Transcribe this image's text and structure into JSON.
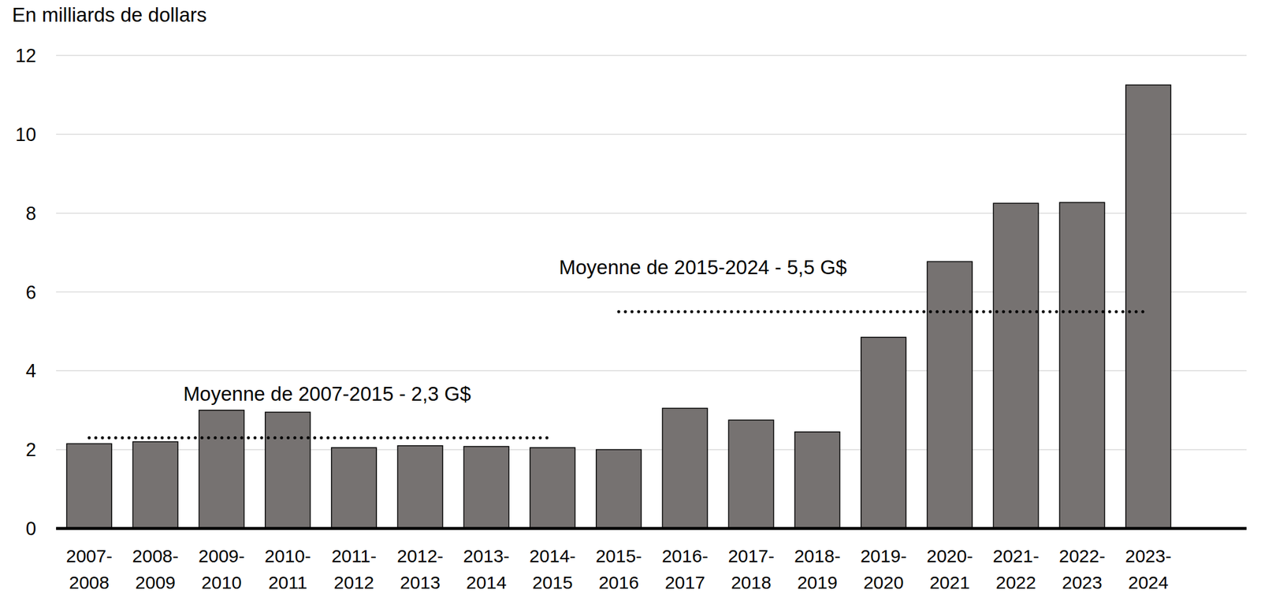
{
  "chart_data": {
    "type": "bar",
    "y_label": "En milliards de dollars",
    "categories": [
      "2007-2008",
      "2008-2009",
      "2009-2010",
      "2010-2011",
      "2011-2012",
      "2012-2013",
      "2013-2014",
      "2014-2015",
      "2015-2016",
      "2016-2017",
      "2017-2018",
      "2018-2019",
      "2019-2020",
      "2020-2021",
      "2021-2022",
      "2022-2023",
      "2023-2024"
    ],
    "values": [
      2.15,
      2.2,
      3.0,
      2.95,
      2.05,
      2.1,
      2.08,
      2.05,
      2.0,
      3.05,
      2.75,
      2.45,
      4.85,
      6.77,
      8.25,
      8.27,
      11.25
    ],
    "color": "#767271",
    "ylim": [
      0,
      12
    ],
    "yticks": [
      0,
      2,
      4,
      6,
      8,
      10,
      12
    ],
    "grid": true,
    "annotations": [
      {
        "text": "Moyenne de 2007-2015 - 2,3 G$",
        "value": 2.3,
        "start": "2007-2008",
        "end": "2014-2015"
      },
      {
        "text": "Moyenne de 2015-2024 - 5,5 G$",
        "value": 5.5,
        "start": "2015-2016",
        "end": "2023-2024"
      }
    ]
  }
}
